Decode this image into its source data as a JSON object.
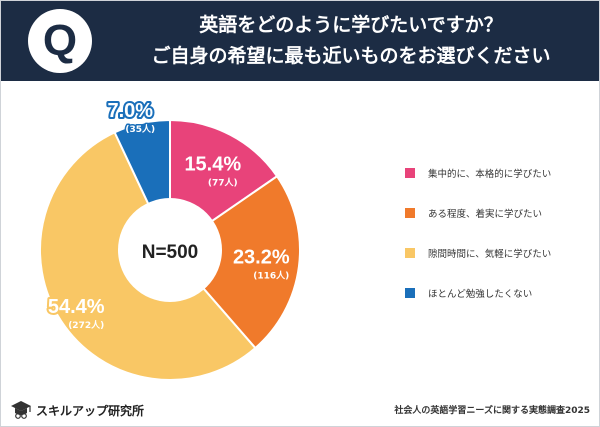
{
  "header": {
    "badge": "Q",
    "title_line1": "英語をどのように学びたいですか？",
    "title_line2": "ご自身の希望に最も近いものをお選びください"
  },
  "chart_data": {
    "type": "pie",
    "donut": true,
    "center_label": "N=500",
    "total": 500,
    "slices": [
      {
        "label": "集中的に、本格的に学びたい",
        "percent": 15.4,
        "percent_label": "15.4%",
        "count": 77,
        "count_label": "(77人)",
        "color": "#e8437a"
      },
      {
        "label": "ある程度、着実に学びたい",
        "percent": 23.2,
        "percent_label": "23.2%",
        "count": 116,
        "count_label": "(116人)",
        "color": "#f07a2b"
      },
      {
        "label": "隙間時間に、気軽に学びたい",
        "percent": 54.4,
        "percent_label": "54.4%",
        "count": 272,
        "count_label": "(272人)",
        "color": "#f9c765"
      },
      {
        "label": "ほとんど勉強したくない",
        "percent": 7.0,
        "percent_label": "7.0%",
        "count": 35,
        "count_label": "(35人)",
        "color": "#1a6fba"
      }
    ],
    "legend_position": "right"
  },
  "footer": {
    "logo_text": "スキルアップ研究所",
    "logo_icon": "graduation-cap-icon",
    "source": "社会人の英語学習ニーズに関する実態調査2025"
  },
  "colors": {
    "header_bg": "#1c2c44",
    "text_dark": "#333333"
  }
}
